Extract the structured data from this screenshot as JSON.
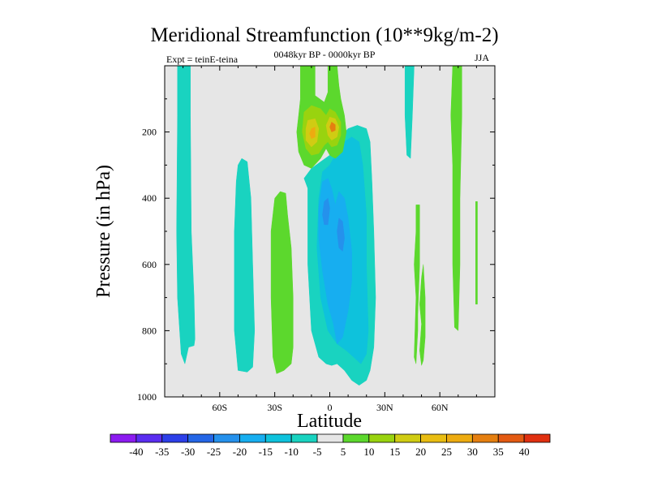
{
  "colors": {
    "plot_bg": "#e6e6e6",
    "neg_5": "#19d3c0",
    "neg_10": "#0ec2dc",
    "neg_15": "#17aef0",
    "neg_20": "#2591ec",
    "pos_5": "#5cd82d",
    "pos_10": "#99d30f",
    "pos_15": "#d0cc13",
    "pos_20": "#edab10",
    "pos_25": "#e57f10"
  },
  "chart_data": {
    "type": "contour",
    "title": "Meridional Streamfunction (10**9kg/m-2)",
    "subtitle": "0048kyr BP - 0000kyr BP",
    "left_label": "Expt = teinE-teina",
    "right_label": "JJA",
    "xlabel": "Latitude",
    "ylabel": "Pressure (in hPa)",
    "xlim": [
      -90,
      90
    ],
    "ylim": [
      1000,
      0
    ],
    "x_ticks": [
      {
        "value": -60,
        "label": "60S"
      },
      {
        "value": -30,
        "label": "30S"
      },
      {
        "value": 0,
        "label": "0"
      },
      {
        "value": 30,
        "label": "30N"
      },
      {
        "value": 60,
        "label": "60N"
      }
    ],
    "y_ticks": [
      {
        "value": 200,
        "label": "200"
      },
      {
        "value": 400,
        "label": "400"
      },
      {
        "value": 600,
        "label": "600"
      },
      {
        "value": 800,
        "label": "800"
      },
      {
        "value": 1000,
        "label": "1000"
      }
    ],
    "colorbar": {
      "levels": [
        "-40",
        "-35",
        "-30",
        "-25",
        "-20",
        "-15",
        "-10",
        "-5",
        "5",
        "10",
        "15",
        "20",
        "25",
        "30",
        "35",
        "40"
      ],
      "colors": [
        "#8c1bf0",
        "#5a2df0",
        "#2c3fe8",
        "#2466e6",
        "#2591ec",
        "#17aef0",
        "#0ec2dc",
        "#19d3c0",
        "#e6e6e6",
        "#5cd82d",
        "#99d30f",
        "#d0cc13",
        "#e9bd12",
        "#edab10",
        "#e57f10",
        "#e35a12",
        "#e03010"
      ]
    },
    "regions": [
      {
        "name": "sh-high-lat-cell",
        "level": "-5",
        "points": [
          [
            -83,
            0
          ],
          [
            -76,
            0
          ],
          [
            -76,
            150
          ],
          [
            -75.5,
            500
          ],
          [
            -74,
            700
          ],
          [
            -73.5,
            825
          ],
          [
            -74,
            845
          ],
          [
            -77,
            850
          ],
          [
            -79,
            900
          ],
          [
            -81,
            870
          ],
          [
            -83,
            700
          ],
          [
            -83.5,
            500
          ],
          [
            -83,
            150
          ]
        ]
      },
      {
        "name": "sh-mid-lat-cell",
        "level": "-5",
        "points": [
          [
            -50,
            300
          ],
          [
            -48,
            280
          ],
          [
            -45,
            290
          ],
          [
            -43,
            400
          ],
          [
            -42,
            600
          ],
          [
            -41,
            800
          ],
          [
            -42,
            910
          ],
          [
            -45,
            925
          ],
          [
            -50,
            920
          ],
          [
            -52,
            800
          ],
          [
            -52,
            500
          ],
          [
            -51,
            350
          ]
        ]
      },
      {
        "name": "sh-subtropical-cell",
        "level": "5",
        "points": [
          [
            -30,
            400
          ],
          [
            -27,
            380
          ],
          [
            -24,
            385
          ],
          [
            -23,
            450
          ],
          [
            -21,
            550
          ],
          [
            -20,
            700
          ],
          [
            -20,
            850
          ],
          [
            -21,
            900
          ],
          [
            -25,
            920
          ],
          [
            -29,
            930
          ],
          [
            -31,
            880
          ],
          [
            -32,
            700
          ],
          [
            -32,
            500
          ]
        ]
      },
      {
        "name": "equatorial-cell-outer",
        "level": "-5",
        "points": [
          [
            -12,
            370
          ],
          [
            -14,
            340
          ],
          [
            -10,
            310
          ],
          [
            -5,
            290
          ],
          [
            0,
            270
          ],
          [
            5,
            220
          ],
          [
            10,
            190
          ],
          [
            15,
            180
          ],
          [
            20,
            190
          ],
          [
            22,
            230
          ],
          [
            23,
            350
          ],
          [
            24,
            500
          ],
          [
            25,
            700
          ],
          [
            24,
            850
          ],
          [
            22,
            920
          ],
          [
            20,
            950
          ],
          [
            16,
            965
          ],
          [
            12,
            950
          ],
          [
            8,
            920
          ],
          [
            4,
            900
          ],
          [
            1,
            905
          ],
          [
            -2,
            900
          ],
          [
            -6,
            880
          ],
          [
            -10,
            800
          ],
          [
            -12,
            600
          ],
          [
            -12,
            450
          ]
        ]
      },
      {
        "name": "equatorial-cell-mid",
        "level": "-10",
        "points": [
          [
            -4,
            320
          ],
          [
            0,
            300
          ],
          [
            4,
            260
          ],
          [
            8,
            230
          ],
          [
            12,
            215
          ],
          [
            16,
            230
          ],
          [
            18,
            300
          ],
          [
            20,
            450
          ],
          [
            20,
            600
          ],
          [
            21,
            800
          ],
          [
            20,
            870
          ],
          [
            17,
            900
          ],
          [
            13,
            880
          ],
          [
            9,
            860
          ],
          [
            4,
            840
          ],
          [
            -1,
            800
          ],
          [
            -5,
            700
          ],
          [
            -7,
            550
          ],
          [
            -6,
            400
          ]
        ]
      },
      {
        "name": "equatorial-cell-core",
        "level": "-15",
        "points": [
          [
            -4,
            350
          ],
          [
            -1,
            340
          ],
          [
            1,
            370
          ],
          [
            3,
            420
          ],
          [
            5,
            380
          ],
          [
            8,
            400
          ],
          [
            10,
            460
          ],
          [
            12,
            560
          ],
          [
            12,
            650
          ],
          [
            10,
            740
          ],
          [
            7,
            820
          ],
          [
            4,
            840
          ],
          [
            2,
            780
          ],
          [
            -1,
            720
          ],
          [
            -4,
            620
          ],
          [
            -6,
            520
          ],
          [
            -6,
            430
          ]
        ]
      },
      {
        "name": "equatorial-cell-inner-core",
        "level": "-20",
        "points": [
          [
            -3,
            410
          ],
          [
            -1,
            400
          ],
          [
            0,
            430
          ],
          [
            -1,
            480
          ],
          [
            -3,
            480
          ],
          [
            -4,
            450
          ]
        ]
      },
      {
        "name": "equatorial-cell-inner-core-2",
        "level": "-20",
        "points": [
          [
            5,
            460
          ],
          [
            7,
            470
          ],
          [
            8,
            520
          ],
          [
            7,
            560
          ],
          [
            5,
            550
          ],
          [
            4,
            500
          ]
        ]
      },
      {
        "name": "upper-cell-lobe",
        "level": "5",
        "points": [
          [
            -16,
            0
          ],
          [
            -8,
            0
          ],
          [
            -8,
            90
          ],
          [
            -3,
            110
          ],
          [
            -1,
            80
          ],
          [
            -1,
            0
          ],
          [
            4,
            0
          ],
          [
            5,
            60
          ],
          [
            6,
            100
          ],
          [
            8,
            150
          ],
          [
            9,
            200
          ],
          [
            7,
            260
          ],
          [
            3,
            280
          ],
          [
            0,
            270
          ],
          [
            -2,
            250
          ],
          [
            -5,
            280
          ],
          [
            -10,
            310
          ],
          [
            -14,
            300
          ],
          [
            -17,
            260
          ],
          [
            -18,
            200
          ],
          [
            -17,
            150
          ],
          [
            -16,
            100
          ]
        ]
      },
      {
        "name": "upper-cell-ring",
        "level": "10",
        "points": [
          [
            -14,
            140
          ],
          [
            -10,
            120
          ],
          [
            -5,
            130
          ],
          [
            -2,
            150
          ],
          [
            0,
            130
          ],
          [
            3,
            140
          ],
          [
            6,
            170
          ],
          [
            6,
            210
          ],
          [
            4,
            240
          ],
          [
            1,
            245
          ],
          [
            -1,
            230
          ],
          [
            -3,
            240
          ],
          [
            -6,
            265
          ],
          [
            -10,
            270
          ],
          [
            -13,
            250
          ],
          [
            -15,
            200
          ]
        ]
      },
      {
        "name": "upper-cell-peak-west",
        "level": "15",
        "points": [
          [
            -12,
            165
          ],
          [
            -8,
            160
          ],
          [
            -6,
            190
          ],
          [
            -7,
            230
          ],
          [
            -10,
            245
          ],
          [
            -13,
            225
          ],
          [
            -13,
            190
          ]
        ]
      },
      {
        "name": "upper-cell-peak-east",
        "level": "15",
        "points": [
          [
            0,
            155
          ],
          [
            3,
            160
          ],
          [
            5,
            185
          ],
          [
            4,
            215
          ],
          [
            1,
            225
          ],
          [
            -1,
            210
          ],
          [
            -2,
            180
          ]
        ]
      },
      {
        "name": "upper-cell-max-west",
        "level": "20",
        "points": [
          [
            -10,
            190
          ],
          [
            -8,
            185
          ],
          [
            -8,
            215
          ],
          [
            -10,
            220
          ],
          [
            -11,
            205
          ]
        ]
      },
      {
        "name": "upper-cell-max-east",
        "level": "25",
        "points": [
          [
            1,
            170
          ],
          [
            3,
            178
          ],
          [
            3,
            195
          ],
          [
            1,
            200
          ],
          [
            0,
            185
          ]
        ]
      },
      {
        "name": "nh-subtropical-strip",
        "level": "-5",
        "points": [
          [
            41,
            0
          ],
          [
            46,
            0
          ],
          [
            45,
            150
          ],
          [
            44,
            280
          ],
          [
            42,
            270
          ],
          [
            41,
            150
          ]
        ]
      },
      {
        "name": "nh-mid-lat-cell",
        "level": "5",
        "points": [
          [
            51,
            600
          ],
          [
            52,
            700
          ],
          [
            52,
            820
          ],
          [
            51,
            890
          ],
          [
            50,
            905
          ],
          [
            49,
            860
          ],
          [
            50,
            780
          ],
          [
            49,
            720
          ],
          [
            50,
            640
          ]
        ]
      },
      {
        "name": "nh-mid-lat-strip",
        "level": "5",
        "points": [
          [
            47,
            420
          ],
          [
            49,
            420
          ],
          [
            49,
            600
          ],
          [
            48,
            750
          ],
          [
            48,
            800
          ],
          [
            47,
            900
          ],
          [
            46,
            880
          ],
          [
            47,
            700
          ],
          [
            46,
            600
          ],
          [
            47,
            500
          ]
        ]
      },
      {
        "name": "nh-high-lat-cell",
        "level": "5",
        "points": [
          [
            67,
            0
          ],
          [
            72,
            0
          ],
          [
            72,
            150
          ],
          [
            71,
            400
          ],
          [
            71,
            600
          ],
          [
            70,
            800
          ],
          [
            68,
            790
          ],
          [
            67,
            600
          ],
          [
            67,
            300
          ],
          [
            66,
            150
          ]
        ]
      },
      {
        "name": "nh-polar-line",
        "level": "5",
        "points": [
          [
            79.5,
            410
          ],
          [
            80.5,
            410
          ],
          [
            80.5,
            720
          ],
          [
            79.5,
            720
          ]
        ]
      }
    ]
  }
}
